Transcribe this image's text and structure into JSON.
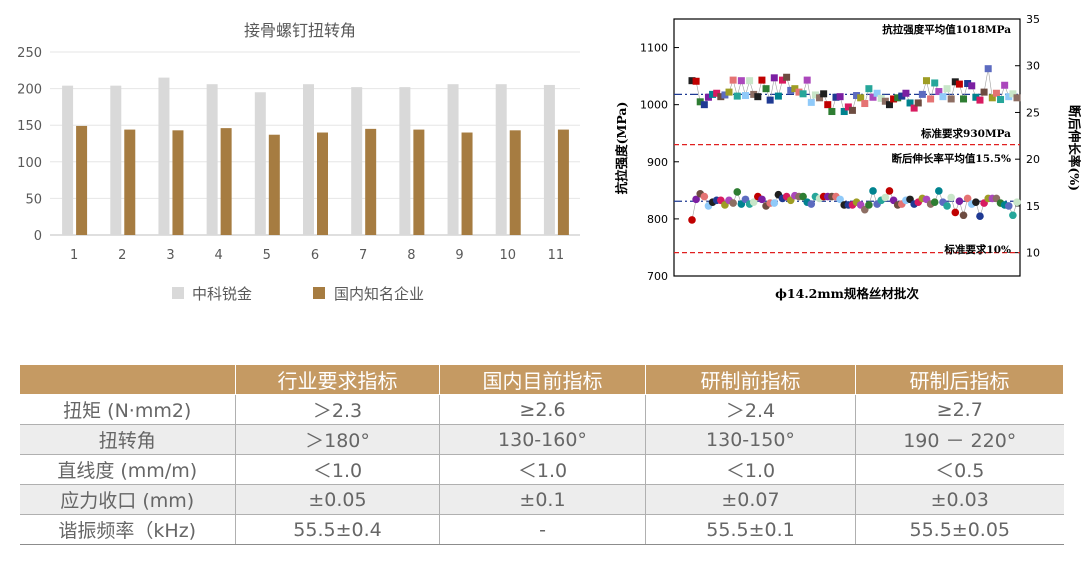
{
  "chart_data": [
    {
      "type": "bar",
      "title": "接骨螺钉扭转角",
      "categories": [
        "1",
        "2",
        "3",
        "4",
        "5",
        "6",
        "7",
        "8",
        "9",
        "10",
        "11"
      ],
      "series": [
        {
          "name": "中科锐金",
          "values": [
            204,
            204,
            215,
            206,
            195,
            206,
            202,
            202,
            206,
            206,
            205
          ],
          "color": "#d9d9d9"
        },
        {
          "name": "国内知名企业",
          "values": [
            149,
            144,
            143,
            146,
            137,
            140,
            145,
            144,
            140,
            143,
            144
          ],
          "color": "#a67c41"
        }
      ],
      "yticks": [
        "0",
        "50",
        "100",
        "150",
        "200",
        "250"
      ],
      "ylim": [
        0,
        250
      ],
      "legend_position": "bottom",
      "grid": true
    },
    {
      "type": "scatter",
      "xlabel": "ϕ14.2mm规格丝材批次",
      "ylabel_left": "抗拉强度(MPa)",
      "ylabel_right": "断后伸长率(%)",
      "yticks_left": [
        "700",
        "800",
        "900",
        "1000",
        "1100"
      ],
      "yticks_right": [
        "10",
        "15",
        "20",
        "25",
        "30",
        "35"
      ],
      "ylim_left": [
        700,
        1150
      ],
      "ylim_right": [
        7.5,
        35
      ],
      "annotations": {
        "strength_avg": "抗拉强度平均值1018MPa",
        "strength_std": "标准要求930MPa",
        "elong_avg": "断后伸长率平均值15.5%",
        "elong_std": "标准要求10%"
      },
      "lines": {
        "strength_avg": 1018,
        "strength_std": 930,
        "elong_avg_right": 15.5,
        "elong_std_right": 10
      },
      "strength_values": [
        1042,
        1041,
        1005,
        1000,
        1013,
        1018,
        1020,
        1014,
        1017,
        1022,
        1043,
        1015,
        1042,
        1016,
        1042,
        1018,
        1014,
        1043,
        1028,
        1008,
        1047,
        1015,
        1043,
        1048,
        1025,
        1028,
        1022,
        1019,
        1043,
        1004,
        1017,
        1012,
        1019,
        1000,
        988,
        1013,
        1014,
        988,
        996,
        990,
        1016,
        1012,
        1002,
        1028,
        1013,
        1020,
        1011,
        1006,
        1000,
        1010,
        1012,
        1015,
        1020,
        1003,
        994,
        1003,
        1018,
        1042,
        1010,
        1038,
        1023,
        1014,
        1028,
        1010,
        1040,
        1036,
        1010,
        1037,
        1033,
        1013,
        1008,
        1022,
        1063,
        1012,
        1020,
        1009,
        1034,
        1014,
        1019,
        1012
      ],
      "elongation_values": [
        13.5,
        15.7,
        16.3,
        16.0,
        15.0,
        15.4,
        15.6,
        15.6,
        15.1,
        15.6,
        15.3,
        16.5,
        15.2,
        15.7,
        15.2,
        15.4,
        16.0,
        15.7,
        15.0,
        15.3,
        15.3,
        16.2,
        15.8,
        16.0,
        15.6,
        16.1,
        16.0,
        16.0,
        15.4,
        15.2,
        16.0,
        15.8,
        16.0,
        16.0,
        16.0,
        16.0,
        15.7,
        15.1,
        15.1,
        15.1,
        15.4,
        15.1,
        14.6,
        15.1,
        16.6,
        15.2,
        15.6,
        15.9,
        16.6,
        15.6,
        15.1,
        15.2,
        15.6,
        15.7,
        15.2,
        15.4,
        15.8,
        15.7,
        15.2,
        15.4,
        16.6,
        15.4,
        15.0,
        15.9,
        14.3,
        15.5,
        14.0,
        15.8,
        15.2,
        15.4,
        13.9,
        15.3,
        15.8,
        15.8,
        15.8,
        15.3,
        15.1,
        15.0,
        14.0,
        15.4
      ],
      "marker_colors": [
        "#1f1f1f",
        "#c00000",
        "#2e7d32",
        "#1f3a93",
        "#7b1fa2",
        "#00838f",
        "#d81b60",
        "#6d4c41",
        "#5c6bc0",
        "#9e9d24",
        "#e57373",
        "#26a69a",
        "#ab47bc",
        "#90caf9",
        "#c8e6c9",
        "#8d6e63"
      ]
    }
  ],
  "table": {
    "headers": [
      "",
      "行业要求指标",
      "国内目前指标",
      "研制前指标",
      "研制后指标"
    ],
    "rows": [
      [
        "扭矩 (N·mm2)",
        "＞2.3",
        "≥2.6",
        "＞2.4",
        "≥2.7"
      ],
      [
        "扭转角",
        "＞180°",
        "130-160°",
        "130-150°",
        "190 － 220°"
      ],
      [
        "直线度 (mm/m)",
        "＜1.0",
        "＜1.0",
        "＜1.0",
        "＜0.5"
      ],
      [
        "应力收口 (mm)",
        "±0.05",
        "±0.1",
        "±0.07",
        "±0.03"
      ],
      [
        "谐振频率（kHz)",
        "55.5±0.4",
        "-",
        "55.5±0.1",
        "55.5±0.05"
      ]
    ]
  },
  "colors": {
    "header_bg": "#c59a63",
    "row_shade": "#ededed",
    "avg_line": "#1f3a93",
    "std_line": "#e02020"
  }
}
